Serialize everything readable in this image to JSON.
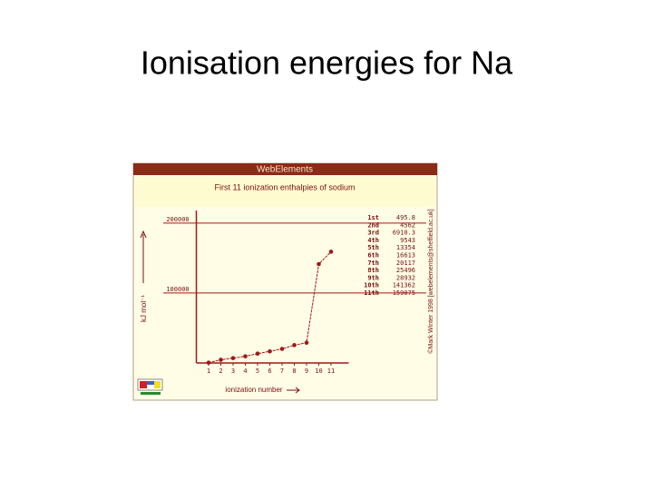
{
  "slide_title": "Ionisation energies for Na",
  "chart_data": {
    "type": "line",
    "header": "WebElements",
    "title": "First 11 ionization enthalpies of sodium",
    "y_label": "kJ mol⁻¹",
    "x_label": "ionization number",
    "credit": "©Mark Winter 1998 [webelements@sheffield.ac.uk]",
    "x": [
      1,
      2,
      3,
      4,
      5,
      6,
      7,
      8,
      9,
      10,
      11
    ],
    "xlim": [
      0,
      12
    ],
    "xticks": [
      1,
      2,
      3,
      4,
      5,
      6,
      7,
      8,
      9,
      10,
      11
    ],
    "ylim": [
      0,
      218000
    ],
    "yticks": [
      100000,
      200000
    ],
    "grid": true,
    "series": [
      {
        "color": "#a01818",
        "values": [
          495.8,
          4562,
          6910.3,
          9543,
          13354,
          16613,
          20117,
          25496,
          28932,
          141362,
          159075
        ]
      }
    ],
    "ordinals": [
      "1st",
      "2nd",
      "3rd",
      "4th",
      "5th",
      "6th",
      "7th",
      "8th",
      "9th",
      "10th",
      "11th"
    ]
  }
}
